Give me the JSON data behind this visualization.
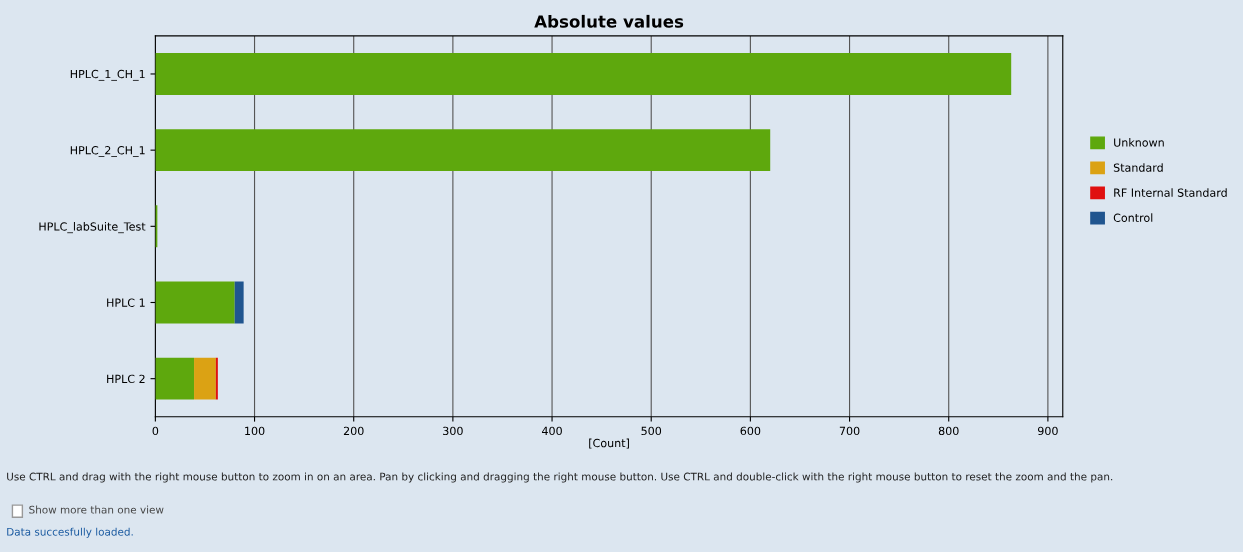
{
  "chart_data": {
    "type": "bar",
    "title": "Absolute values",
    "xlabel": "[Count]",
    "orientation": "horizontal",
    "stacked": true,
    "categories": [
      "HPLC_1_CH_1",
      "HPLC_2_CH_1",
      "HPLC_labSuite_Test",
      "HPLC 1",
      "HPLC 2"
    ],
    "series": [
      {
        "name": "Unknown",
        "color": "#5ea80d",
        "values": [
          863,
          620,
          2,
          80,
          39
        ]
      },
      {
        "name": "Standard",
        "color": "#dba214",
        "values": [
          0,
          0,
          0,
          0,
          22
        ]
      },
      {
        "name": "RF Internal Standard",
        "color": "#e01010",
        "values": [
          0,
          0,
          0,
          0,
          2
        ]
      },
      {
        "name": "Control",
        "color": "#20558f",
        "values": [
          0,
          0,
          0,
          9,
          0
        ]
      }
    ],
    "xlim": [
      0,
      915
    ],
    "xticks": [
      0,
      100,
      200,
      300,
      400,
      500,
      600,
      700,
      800,
      900
    ],
    "grid": "x",
    "legend": "right",
    "annotations": [
      "Use CTRL and drag with the right mouse button to zoom in on an area. Pan by clicking and dragging the right mouse button. Use CTRL and double-click with the right mouse button to reset the zoom and the pan.",
      "Show more than one view",
      "Data succesfully loaded."
    ]
  }
}
